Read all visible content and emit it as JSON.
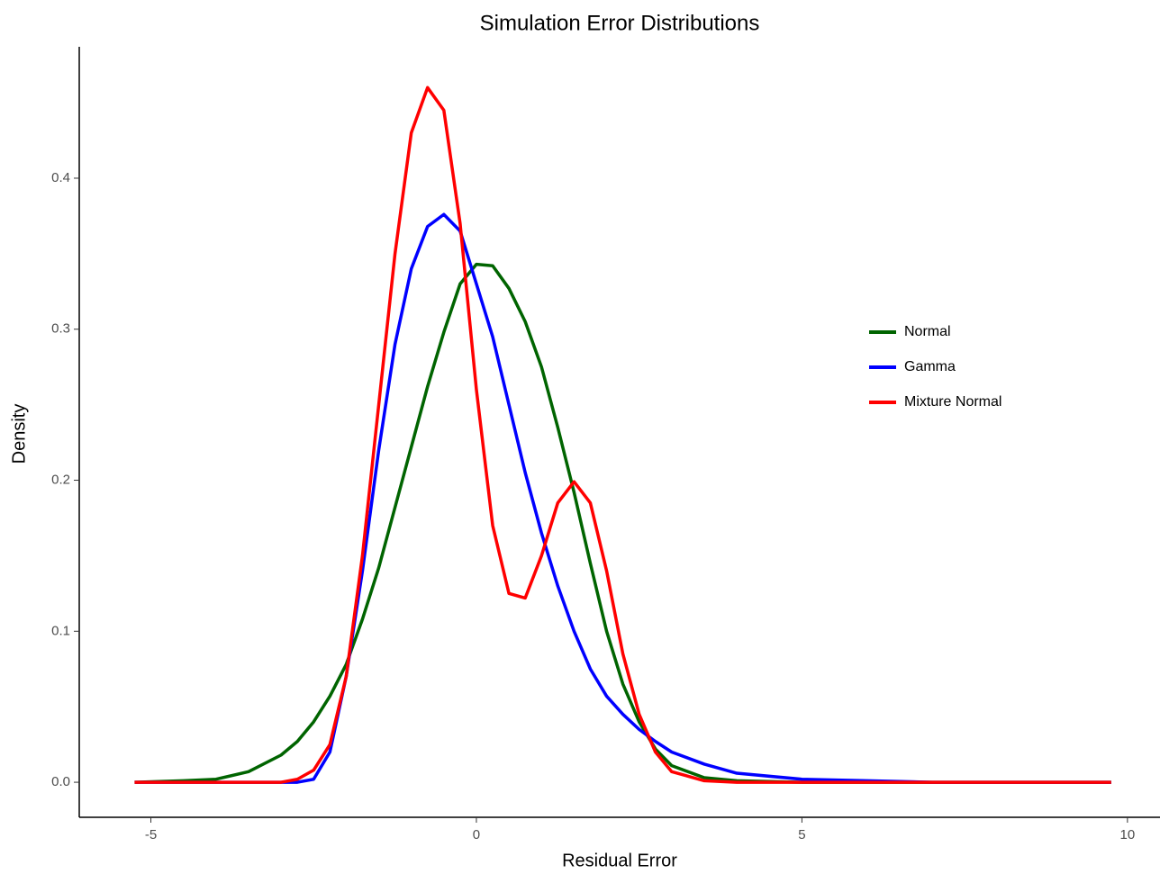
{
  "chart_data": {
    "type": "line",
    "title": "Simulation Error Distributions",
    "x_label": "Residual Error",
    "y_label": "Density",
    "x": [
      -5.25,
      -4.5,
      -4,
      -3.5,
      -3,
      -2.75,
      -2.5,
      -2.25,
      -2,
      -1.75,
      -1.5,
      -1.25,
      -1,
      -0.75,
      -0.5,
      -0.25,
      0,
      0.25,
      0.5,
      0.75,
      1,
      1.25,
      1.5,
      1.75,
      2,
      2.25,
      2.5,
      2.75,
      3,
      3.5,
      4,
      5,
      6,
      7,
      8,
      9.75
    ],
    "series": [
      {
        "name": "Normal",
        "color": "#006400",
        "values": [
          0,
          0.001,
          0.002,
          0.007,
          0.018,
          0.027,
          0.04,
          0.057,
          0.078,
          0.108,
          0.142,
          0.182,
          0.222,
          0.262,
          0.298,
          0.33,
          0.343,
          0.342,
          0.327,
          0.305,
          0.275,
          0.235,
          0.192,
          0.145,
          0.1,
          0.065,
          0.04,
          0.022,
          0.011,
          0.003,
          0.001,
          0,
          0,
          0,
          0,
          0
        ]
      },
      {
        "name": "Gamma",
        "color": "#0000ff",
        "values": [
          0,
          0,
          0,
          0,
          0,
          0,
          0.002,
          0.02,
          0.07,
          0.14,
          0.22,
          0.29,
          0.34,
          0.368,
          0.376,
          0.365,
          0.33,
          0.295,
          0.25,
          0.205,
          0.165,
          0.13,
          0.1,
          0.075,
          0.057,
          0.045,
          0.035,
          0.027,
          0.02,
          0.012,
          0.006,
          0.002,
          0.001,
          0,
          0,
          0
        ]
      },
      {
        "name": "Mixture Normal",
        "color": "#ff0000",
        "values": [
          0,
          0,
          0,
          0,
          0,
          0.002,
          0.008,
          0.025,
          0.07,
          0.15,
          0.25,
          0.35,
          0.43,
          0.46,
          0.445,
          0.37,
          0.26,
          0.17,
          0.125,
          0.122,
          0.15,
          0.185,
          0.199,
          0.185,
          0.14,
          0.085,
          0.045,
          0.02,
          0.007,
          0.001,
          0,
          0,
          0,
          0,
          0,
          0
        ]
      }
    ],
    "xlim": [
      -6.1,
      10.5
    ],
    "ylim": [
      -0.0232,
      0.487
    ],
    "xticks": [
      -5,
      0,
      5,
      10
    ],
    "yticks": [
      {
        "value": 0,
        "label": "0.0"
      },
      {
        "value": 0.1,
        "label": "0.1"
      },
      {
        "value": 0.2,
        "label": "0.2"
      },
      {
        "value": 0.3,
        "label": "0.3"
      },
      {
        "value": 0.4,
        "label": "0.4"
      }
    ],
    "grid": false,
    "legend_position": "right"
  }
}
